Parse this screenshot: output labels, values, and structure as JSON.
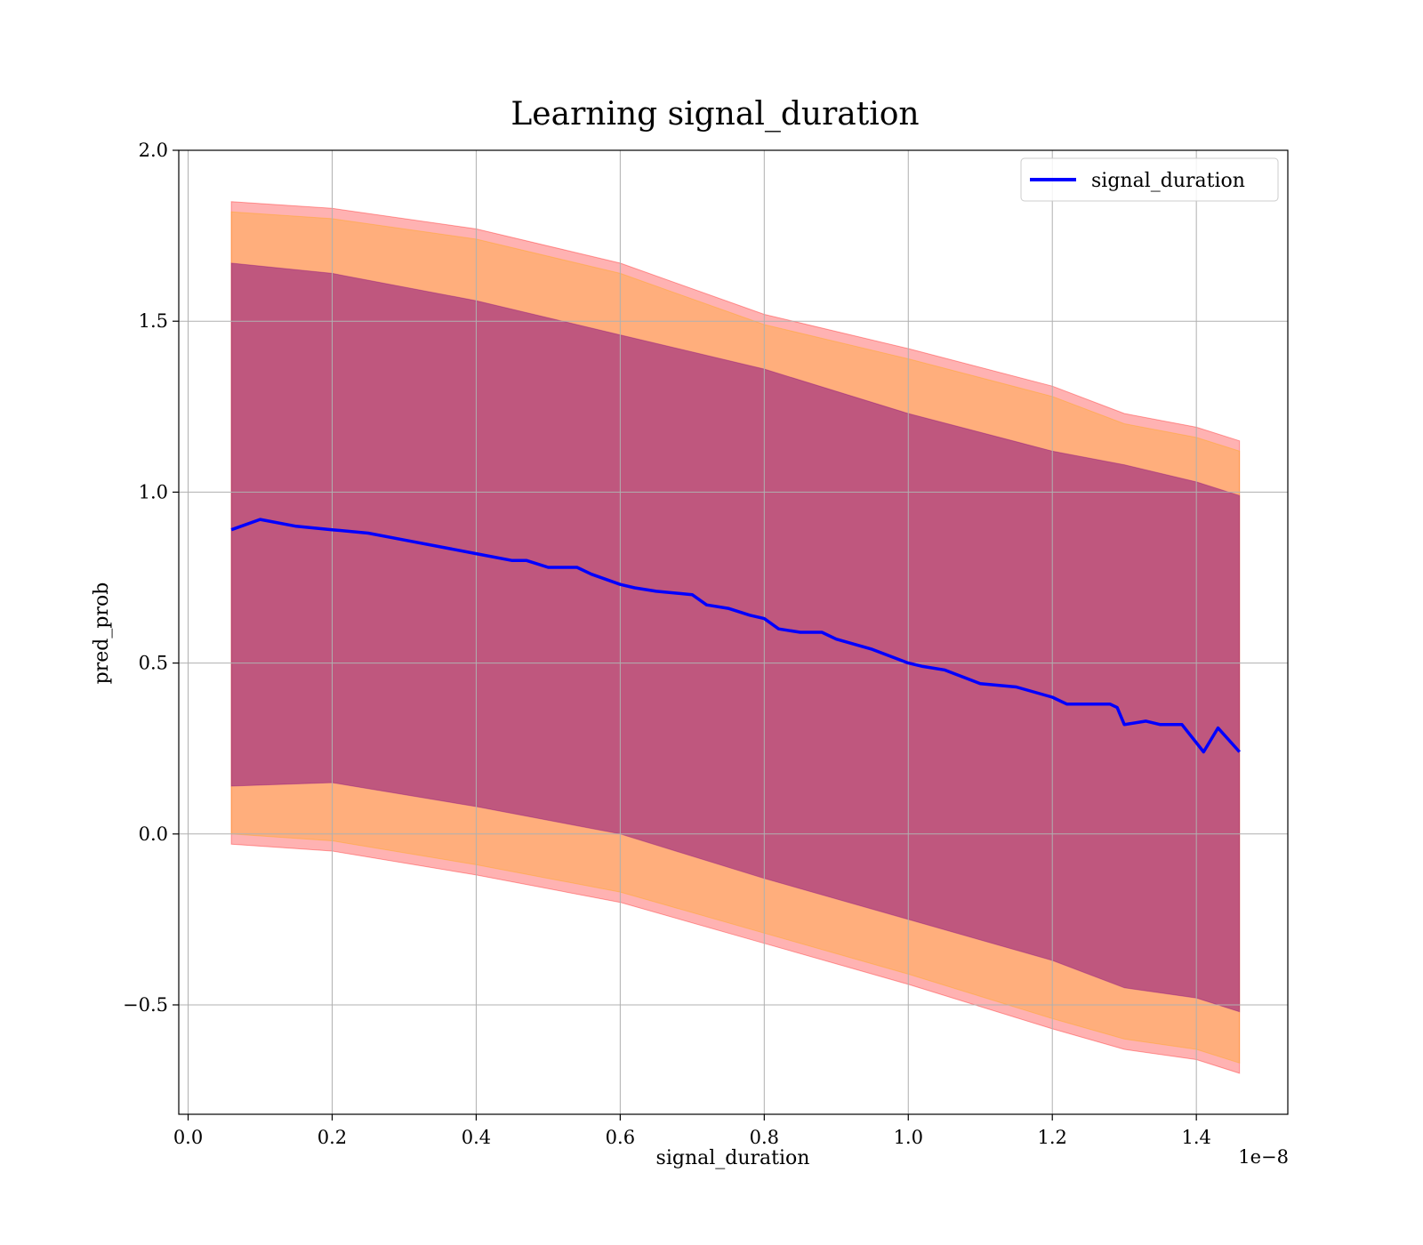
{
  "chart_data": {
    "type": "line",
    "title": "Learning signal_duration",
    "xlabel": "signal_duration",
    "ylabel": "pred_prob",
    "x_offset_label": "1e−8",
    "xlim": [
      -0.013,
      1.527
    ],
    "ylim": [
      -0.82,
      2.0
    ],
    "x_ticks": [
      0.0,
      0.2,
      0.4,
      0.6,
      0.8,
      1.0,
      1.2,
      1.4
    ],
    "x_tick_labels": [
      "0.0",
      "0.2",
      "0.4",
      "0.6",
      "0.8",
      "1.0",
      "1.2",
      "1.4"
    ],
    "y_ticks": [
      -0.5,
      0.0,
      0.5,
      1.0,
      1.5,
      2.0
    ],
    "y_tick_labels": [
      "−0.5",
      "0.0",
      "0.5",
      "1.0",
      "1.5",
      "2.0"
    ],
    "grid": true,
    "legend_position": "top-right",
    "colors": {
      "line": "#0000ff",
      "outer_band": "#ff0000",
      "middle_band": "#ffa500",
      "inner_band": "#800080"
    },
    "series": [
      {
        "name": "signal_duration",
        "x": [
          0.06,
          0.1,
          0.15,
          0.2,
          0.25,
          0.3,
          0.35,
          0.4,
          0.45,
          0.47,
          0.5,
          0.54,
          0.56,
          0.6,
          0.62,
          0.65,
          0.7,
          0.72,
          0.75,
          0.78,
          0.8,
          0.82,
          0.85,
          0.88,
          0.9,
          0.95,
          1.0,
          1.02,
          1.05,
          1.1,
          1.15,
          1.2,
          1.22,
          1.25,
          1.28,
          1.29,
          1.3,
          1.33,
          1.35,
          1.38,
          1.41,
          1.43,
          1.46
        ],
        "values": [
          0.89,
          0.92,
          0.9,
          0.89,
          0.88,
          0.86,
          0.84,
          0.82,
          0.8,
          0.8,
          0.78,
          0.78,
          0.76,
          0.73,
          0.72,
          0.71,
          0.7,
          0.67,
          0.66,
          0.64,
          0.63,
          0.6,
          0.59,
          0.59,
          0.57,
          0.54,
          0.5,
          0.49,
          0.48,
          0.44,
          0.43,
          0.4,
          0.38,
          0.38,
          0.38,
          0.37,
          0.32,
          0.33,
          0.32,
          0.32,
          0.24,
          0.31,
          0.24
        ]
      }
    ],
    "bands": [
      {
        "x": [
          0.06,
          0.2,
          0.4,
          0.6,
          0.8,
          1.0,
          1.2,
          1.3,
          1.4,
          1.46
        ],
        "upper": [
          1.85,
          1.83,
          1.77,
          1.67,
          1.52,
          1.42,
          1.31,
          1.23,
          1.19,
          1.15
        ],
        "lower": [
          -0.03,
          -0.05,
          -0.12,
          -0.2,
          -0.32,
          -0.44,
          -0.57,
          -0.63,
          -0.66,
          -0.7
        ]
      },
      {
        "x": [
          0.06,
          0.2,
          0.4,
          0.6,
          0.8,
          1.0,
          1.2,
          1.3,
          1.4,
          1.46
        ],
        "upper": [
          1.82,
          1.8,
          1.74,
          1.64,
          1.49,
          1.39,
          1.28,
          1.2,
          1.16,
          1.12
        ],
        "lower": [
          0.0,
          -0.02,
          -0.09,
          -0.17,
          -0.29,
          -0.41,
          -0.54,
          -0.6,
          -0.63,
          -0.67
        ]
      },
      {
        "x": [
          0.06,
          0.2,
          0.4,
          0.6,
          0.8,
          1.0,
          1.2,
          1.3,
          1.4,
          1.46
        ],
        "upper": [
          1.67,
          1.64,
          1.56,
          1.46,
          1.36,
          1.23,
          1.12,
          1.08,
          1.03,
          0.99
        ],
        "lower": [
          0.14,
          0.15,
          0.08,
          0.0,
          -0.13,
          -0.25,
          -0.37,
          -0.45,
          -0.48,
          -0.52
        ]
      }
    ]
  }
}
